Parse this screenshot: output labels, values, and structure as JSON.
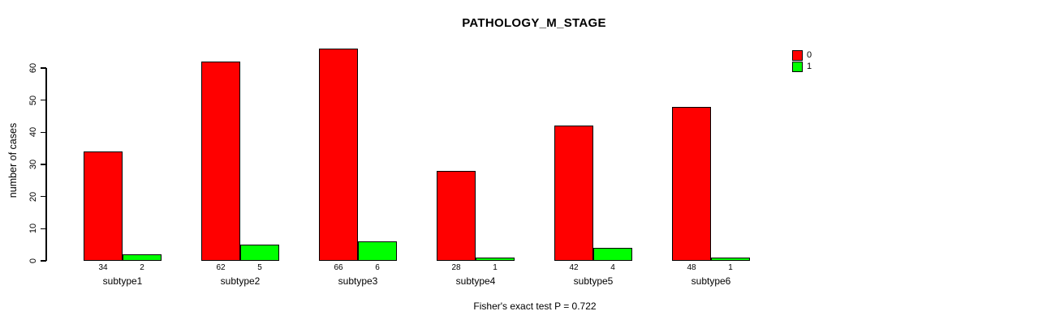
{
  "chart_data": {
    "type": "bar",
    "title": "PATHOLOGY_M_STAGE",
    "xlabel": "",
    "ylabel": "number of cases",
    "categories": [
      "subtype1",
      "subtype2",
      "subtype3",
      "subtype4",
      "subtype5",
      "subtype6"
    ],
    "series": [
      {
        "name": "0",
        "color": "#ff0000",
        "values": [
          34,
          62,
          66,
          28,
          42,
          48
        ]
      },
      {
        "name": "1",
        "color": "#00ff00",
        "values": [
          2,
          5,
          6,
          1,
          4,
          1
        ]
      }
    ],
    "bar_value_labels": [
      [
        34,
        2
      ],
      [
        62,
        5
      ],
      [
        66,
        6
      ],
      [
        28,
        1
      ],
      [
        42,
        4
      ],
      [
        48,
        1
      ]
    ],
    "yticks": [
      0,
      10,
      20,
      30,
      40,
      50,
      60
    ],
    "ylim": [
      0,
      60
    ],
    "grid": false,
    "legend_position": "top-right",
    "legend": [
      {
        "label": "0",
        "color": "#ff0000"
      },
      {
        "label": "1",
        "color": "#00ff00"
      }
    ],
    "bar_border_color": "#000000",
    "footer": "Fisher's exact test P = 0.722"
  }
}
